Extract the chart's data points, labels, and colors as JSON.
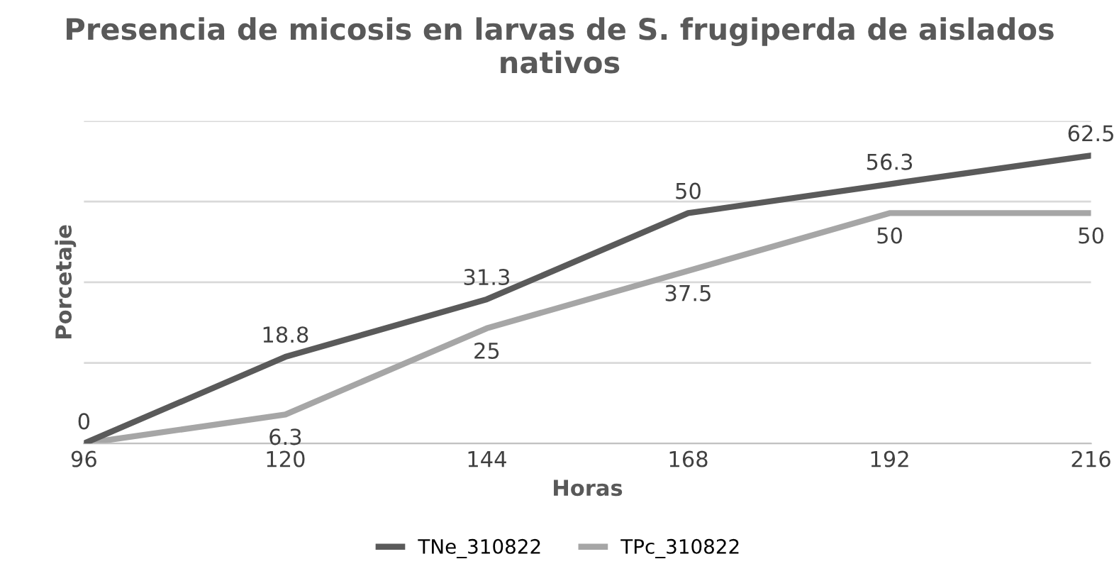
{
  "chart_data": {
    "type": "line",
    "title": "Presencia de micosis en larvas de S. frugiperda de aislados nativos",
    "xlabel": "Horas",
    "ylabel": "Porcetaje",
    "categories": [
      "96",
      "120",
      "144",
      "168",
      "192",
      "216"
    ],
    "series": [
      {
        "name": "TNe_310822",
        "color": "#5a5a5a",
        "values": [
          0,
          18.8,
          31.3,
          50,
          56.3,
          62.5
        ]
      },
      {
        "name": "TPc_310822",
        "color": "#a6a6a6",
        "values": [
          0,
          6.3,
          25,
          37.5,
          50,
          50
        ],
        "value_labels": [
          null,
          "6.3",
          "25",
          "37.5",
          "50",
          "50"
        ]
      }
    ],
    "ylim": [
      0,
      70
    ],
    "yticks": [
      {
        "value": 0,
        "label": null
      },
      {
        "value": 17.5,
        "label": null
      },
      {
        "value": 35,
        "label": null
      },
      {
        "value": 52.5,
        "label": null
      },
      {
        "value": 70,
        "label": null
      }
    ],
    "grid": "y",
    "legend": "bottom",
    "data_labels": true,
    "marker": "none",
    "line_style": "solid",
    "tick_labels": "x"
  }
}
